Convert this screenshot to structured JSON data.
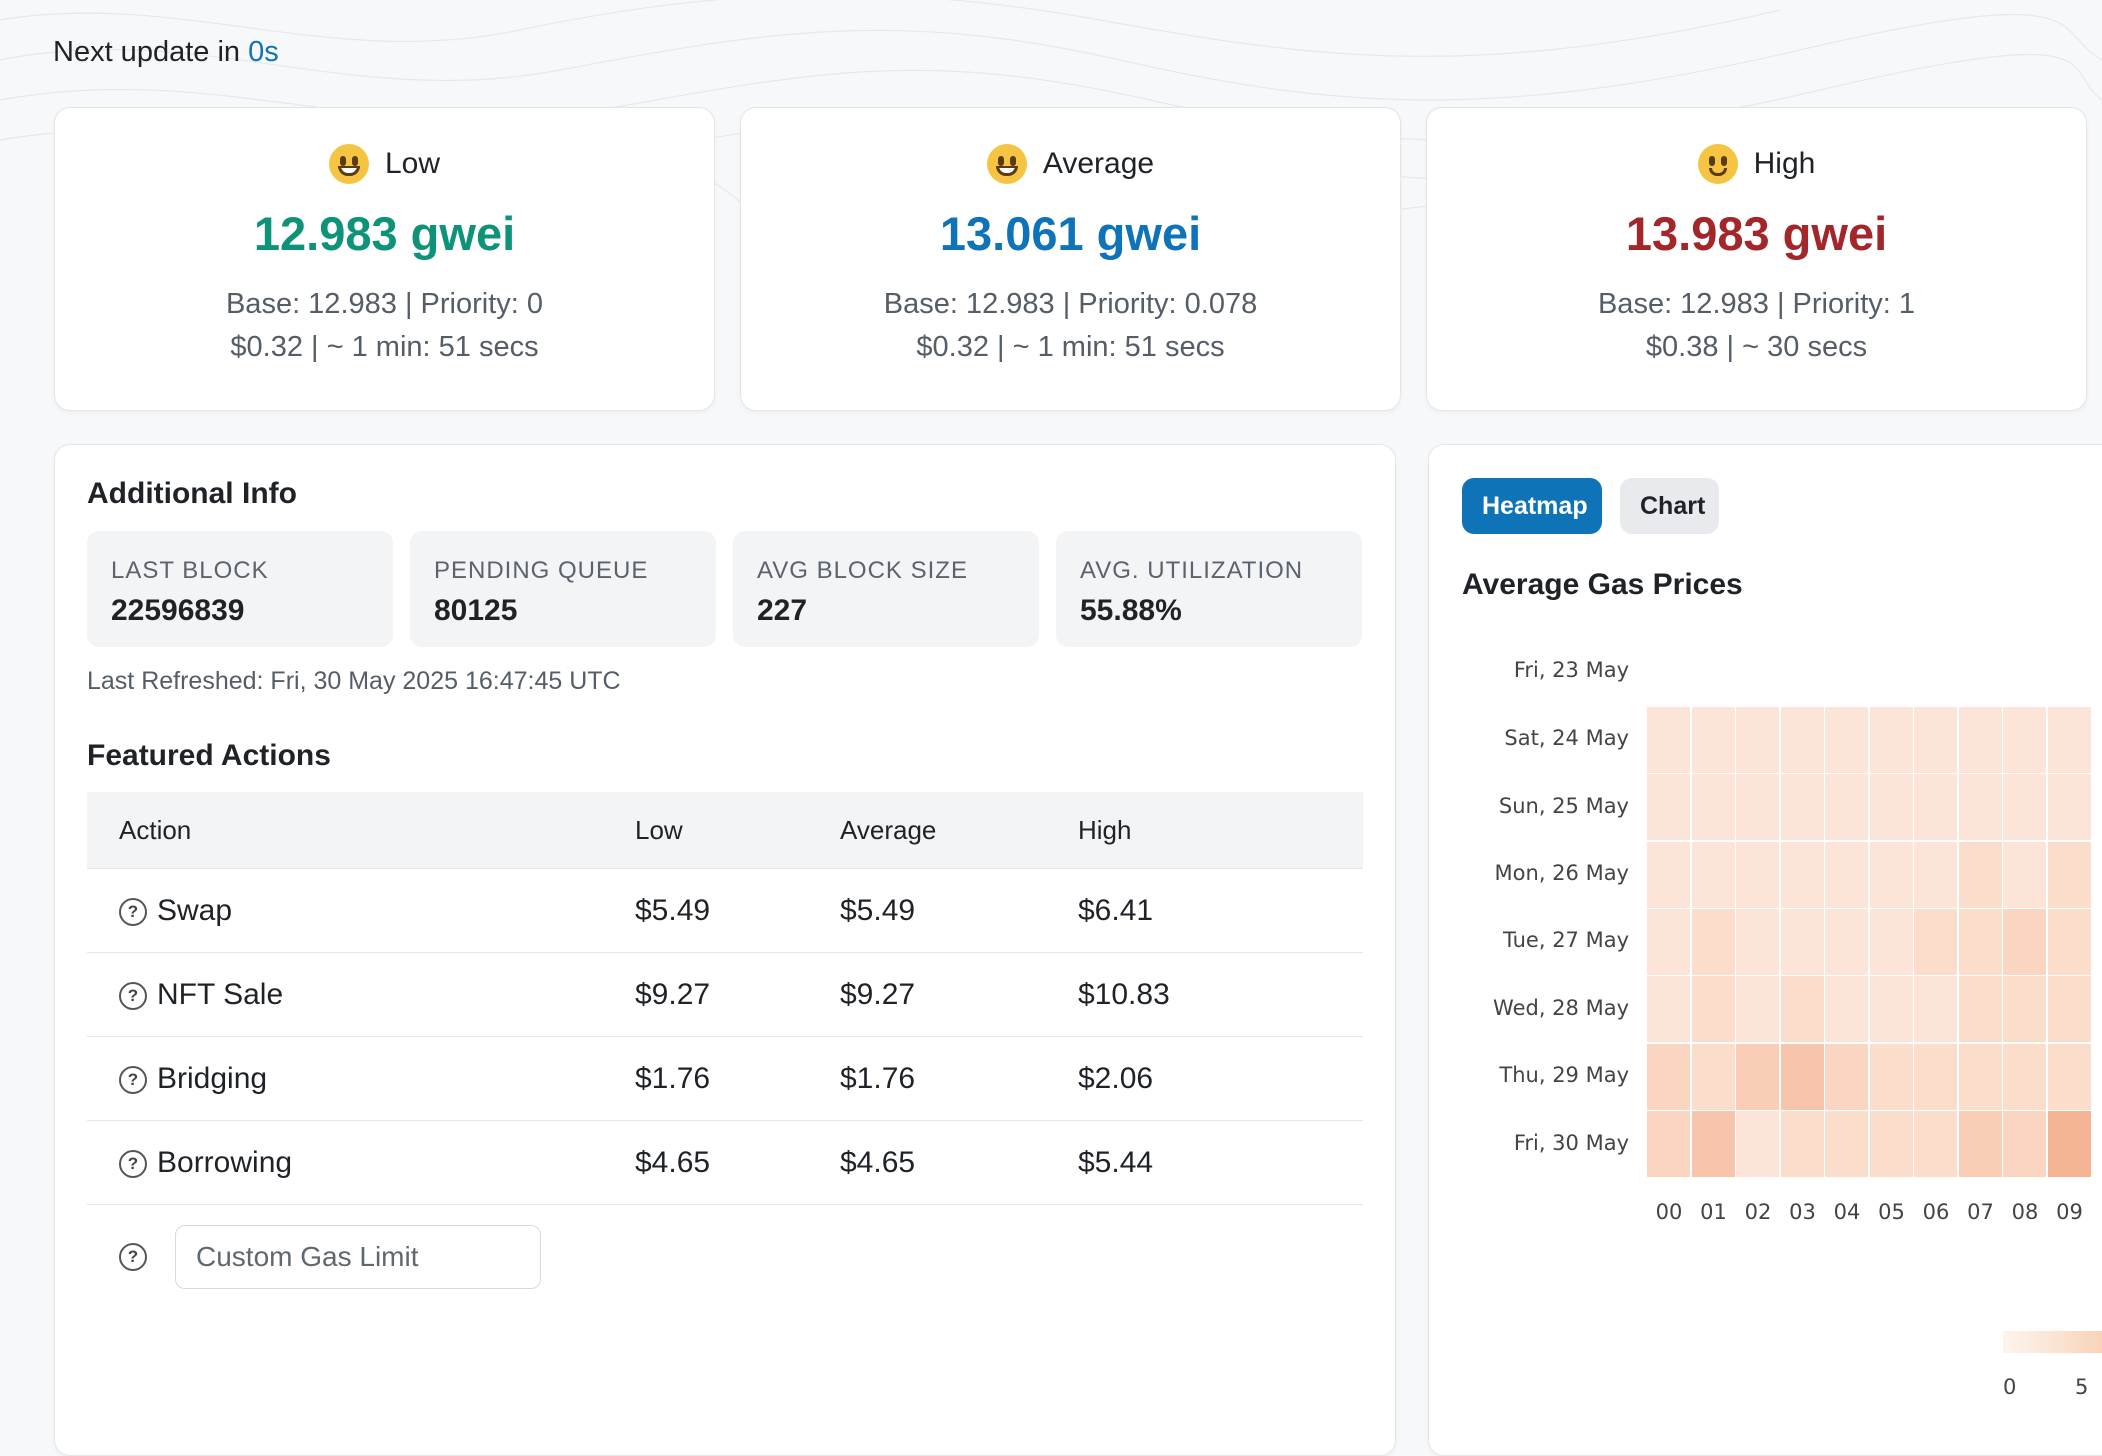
{
  "header": {
    "next_update_label": "Next update in",
    "next_update_value": "0s"
  },
  "fees": [
    {
      "label": "Low",
      "emoji": "grinning-face-icon",
      "value": "12.983 gwei",
      "base_priority": "Base: 12.983 | Priority: 0",
      "cost_time": "$0.32 | ~ 1 min: 51 secs",
      "color": "#0e9378"
    },
    {
      "label": "Average",
      "emoji": "smiling-face-icon",
      "value": "13.061 gwei",
      "base_priority": "Base: 12.983 | Priority: 0.078",
      "cost_time": "$0.32 | ~ 1 min: 51 secs",
      "color": "#0f73b8"
    },
    {
      "label": "High",
      "emoji": "slightly-smiling-face-icon",
      "value": "13.983 gwei",
      "base_priority": "Base: 12.983 | Priority: 1",
      "cost_time": "$0.38 | ~ 30 secs",
      "color": "#a3262a"
    }
  ],
  "additional_info": {
    "title": "Additional Info",
    "stats": [
      {
        "label": "LAST BLOCK",
        "value": "22596839"
      },
      {
        "label": "PENDING QUEUE",
        "value": "80125"
      },
      {
        "label": "AVG BLOCK SIZE",
        "value": "227"
      },
      {
        "label": "AVG. UTILIZATION",
        "value": "55.88%"
      }
    ],
    "last_refreshed": "Last Refreshed: Fri, 30 May 2025 16:47:45 UTC"
  },
  "featured": {
    "title": "Featured Actions",
    "columns": [
      "Action",
      "Low",
      "Average",
      "High"
    ],
    "rows": [
      {
        "action": "Swap",
        "low": "$5.49",
        "avg": "$5.49",
        "high": "$6.41"
      },
      {
        "action": "NFT Sale",
        "low": "$9.27",
        "avg": "$9.27",
        "high": "$10.83"
      },
      {
        "action": "Bridging",
        "low": "$1.76",
        "avg": "$1.76",
        "high": "$2.06"
      },
      {
        "action": "Borrowing",
        "low": "$4.65",
        "avg": "$4.65",
        "high": "$5.44"
      }
    ],
    "custom_placeholder": "Custom Gas Limit",
    "help_icon": "question-circle-icon"
  },
  "heatmap_panel": {
    "tabs": {
      "heatmap": "Heatmap",
      "chart": "Chart"
    },
    "active_tab": "Heatmap",
    "title": "Average Gas Prices"
  },
  "chart_data": {
    "type": "heatmap",
    "title": "Average Gas Prices",
    "y_categories": [
      "Fri, 23 May",
      "Sat, 24 May",
      "Sun, 25 May",
      "Mon, 26 May",
      "Tue, 27 May",
      "Wed, 28 May",
      "Thu, 29 May",
      "Fri, 30 May"
    ],
    "x_categories": [
      "00",
      "01",
      "02",
      "03",
      "04",
      "05",
      "06",
      "07",
      "08",
      "09"
    ],
    "values": [
      [
        null,
        null,
        null,
        null,
        null,
        null,
        null,
        null,
        null,
        null
      ],
      [
        2,
        2,
        2,
        2,
        2,
        2,
        2,
        2,
        2,
        2
      ],
      [
        2,
        2,
        2,
        2,
        2,
        2,
        2,
        2,
        2,
        2
      ],
      [
        2,
        2,
        2,
        2,
        2,
        2,
        2,
        3,
        2,
        3
      ],
      [
        2,
        3,
        2,
        2,
        2,
        2,
        3,
        3,
        4,
        3
      ],
      [
        2,
        3,
        2,
        3,
        2,
        2,
        2,
        3,
        3,
        3
      ],
      [
        4,
        3,
        5,
        6,
        4,
        3,
        3,
        3,
        3,
        3
      ],
      [
        4,
        6,
        2,
        3,
        3,
        3,
        3,
        5,
        4,
        8
      ]
    ],
    "legend": {
      "min_label": "0",
      "tick_label": "5"
    },
    "color_scale": [
      "#fef5ee",
      "#f3a57e"
    ]
  }
}
